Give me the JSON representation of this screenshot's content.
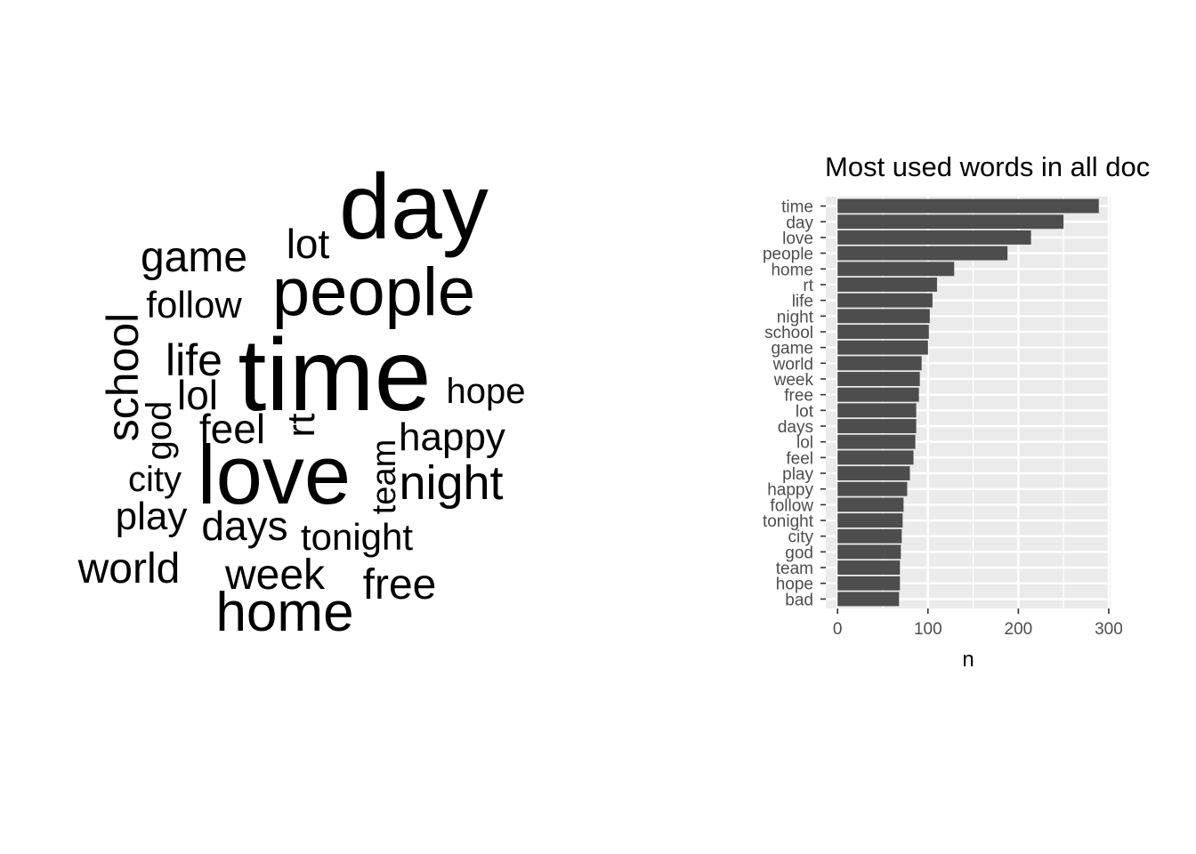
{
  "chart_data": [
    {
      "type": "wordcloud",
      "words": [
        {
          "text": "time"
        },
        {
          "text": "day"
        },
        {
          "text": "love"
        },
        {
          "text": "people"
        },
        {
          "text": "home"
        },
        {
          "text": "rt"
        },
        {
          "text": "life"
        },
        {
          "text": "night"
        },
        {
          "text": "school"
        },
        {
          "text": "game"
        },
        {
          "text": "world"
        },
        {
          "text": "week"
        },
        {
          "text": "free"
        },
        {
          "text": "lot"
        },
        {
          "text": "days"
        },
        {
          "text": "lol"
        },
        {
          "text": "feel"
        },
        {
          "text": "play"
        },
        {
          "text": "happy"
        },
        {
          "text": "follow"
        },
        {
          "text": "tonight"
        },
        {
          "text": "city"
        },
        {
          "text": "god"
        },
        {
          "text": "team"
        },
        {
          "text": "hope"
        }
      ]
    },
    {
      "type": "bar",
      "orientation": "horizontal",
      "title": "Most used words in all doc",
      "xlabel": "n",
      "ylabel": "",
      "xlim": [
        -13,
        302
      ],
      "xticks": [
        0,
        100,
        200,
        300
      ],
      "grid": true,
      "bar_color": "#4d4d4d",
      "panel_color": "#ebebeb",
      "categories": [
        "time",
        "day",
        "love",
        "people",
        "home",
        "rt",
        "life",
        "night",
        "school",
        "game",
        "world",
        "week",
        "free",
        "lot",
        "days",
        "lol",
        "feel",
        "play",
        "happy",
        "follow",
        "tonight",
        "city",
        "god",
        "team",
        "hope",
        "bad"
      ],
      "values": [
        289,
        250,
        214,
        188,
        129,
        110,
        105,
        102,
        101,
        100,
        93,
        91,
        90,
        87,
        87,
        86,
        84,
        80,
        77,
        73,
        72,
        71,
        70,
        69,
        69,
        68
      ]
    }
  ]
}
